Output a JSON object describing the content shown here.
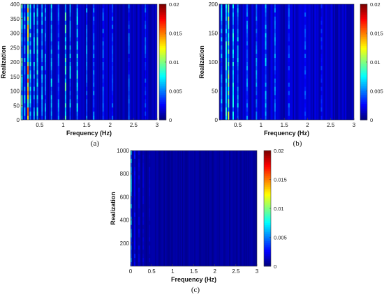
{
  "chart_data": [
    {
      "type": "heatmap",
      "panel_label": "(a)",
      "xlabel": "Frequency (Hz)",
      "ylabel": "Realization",
      "xlim": [
        0.1,
        3
      ],
      "ylim": [
        0,
        400
      ],
      "xticks": [
        0.5,
        1,
        1.5,
        2,
        2.5,
        3
      ],
      "xtick_labels": [
        "0.5",
        "1",
        "1.5",
        "2",
        "2.5",
        "3"
      ],
      "yticks": [
        0,
        50,
        100,
        150,
        200,
        250,
        300,
        350,
        400
      ],
      "ytick_labels": [
        "0",
        "50",
        "100",
        "150",
        "200",
        "250",
        "300",
        "350",
        "400"
      ],
      "colorbar": {
        "range": [
          0,
          0.02
        ],
        "ticks": [
          0,
          0.005,
          0.01,
          0.015,
          0.02
        ],
        "tick_labels": [
          "0",
          "0.005",
          "0.01",
          "0.015",
          "0.02"
        ],
        "colormap": "jet"
      },
      "peaks": [
        {
          "freq": 0.12,
          "value": 0.008
        },
        {
          "freq": 0.18,
          "value": 0.006
        },
        {
          "freq": 0.25,
          "value": 0.013
        },
        {
          "freq": 0.3,
          "value": 0.007
        },
        {
          "freq": 0.38,
          "value": 0.006
        },
        {
          "freq": 0.45,
          "value": 0.007
        },
        {
          "freq": 0.55,
          "value": 0.006
        },
        {
          "freq": 0.62,
          "value": 0.005
        },
        {
          "freq": 0.75,
          "value": 0.006
        },
        {
          "freq": 0.9,
          "value": 0.005
        },
        {
          "freq": 1.05,
          "value": 0.008
        },
        {
          "freq": 1.15,
          "value": 0.006
        },
        {
          "freq": 1.3,
          "value": 0.007
        },
        {
          "freq": 1.5,
          "value": 0.005
        },
        {
          "freq": 1.65,
          "value": 0.005
        },
        {
          "freq": 1.85,
          "value": 0.004
        },
        {
          "freq": 2.05,
          "value": 0.004
        },
        {
          "freq": 2.4,
          "value": 0.004
        },
        {
          "freq": 2.75,
          "value": 0.004
        }
      ],
      "background": 0.0008
    },
    {
      "type": "heatmap",
      "panel_label": "(b)",
      "xlabel": "Frequency (Hz)",
      "ylabel": "Realization",
      "xlim": [
        0.1,
        3
      ],
      "ylim": [
        0,
        200
      ],
      "xticks": [
        0.5,
        1,
        1.5,
        2,
        2.5,
        3
      ],
      "xtick_labels": [
        "0.5",
        "1",
        "1.5",
        "2",
        "2.5",
        "3"
      ],
      "yticks": [
        0,
        50,
        100,
        150,
        200
      ],
      "ytick_labels": [
        "0",
        "50",
        "100",
        "150",
        "200"
      ],
      "colorbar": {
        "range": [
          0,
          0.02
        ],
        "ticks": [
          0,
          0.005,
          0.01,
          0.015,
          0.02
        ],
        "tick_labels": [
          "0",
          "0.005",
          "0.01",
          "0.015",
          "0.02"
        ],
        "colormap": "jet"
      },
      "peaks": [
        {
          "freq": 0.15,
          "value": 0.006
        },
        {
          "freq": 0.25,
          "value": 0.008
        },
        {
          "freq": 0.3,
          "value": 0.01
        },
        {
          "freq": 0.4,
          "value": 0.007
        },
        {
          "freq": 0.5,
          "value": 0.006
        },
        {
          "freq": 0.7,
          "value": 0.005
        },
        {
          "freq": 0.9,
          "value": 0.005
        },
        {
          "freq": 1.1,
          "value": 0.006
        },
        {
          "freq": 1.3,
          "value": 0.005
        },
        {
          "freq": 1.6,
          "value": 0.004
        },
        {
          "freq": 1.95,
          "value": 0.004
        },
        {
          "freq": 2.3,
          "value": 0.003
        }
      ],
      "background": 0.0009
    },
    {
      "type": "heatmap",
      "panel_label": "(c)",
      "xlabel": "Frequency (Hz)",
      "ylabel": "Realization",
      "xlim": [
        0,
        3
      ],
      "ylim": [
        0,
        1000
      ],
      "xticks": [
        0,
        0.5,
        1,
        1.5,
        2,
        2.5,
        3
      ],
      "xtick_labels": [
        "0",
        "0.5",
        "1",
        "1.5",
        "2",
        "2.5",
        "3"
      ],
      "yticks": [
        200,
        400,
        600,
        800,
        1000
      ],
      "ytick_labels": [
        "200",
        "400",
        "600",
        "800",
        "1000"
      ],
      "colorbar": {
        "range": [
          0,
          0.02
        ],
        "ticks": [
          0,
          0.005,
          0.01,
          0.015,
          0.02
        ],
        "tick_labels": [
          "0",
          "0.005",
          "0.01",
          "0.015",
          "0.02"
        ],
        "colormap": "jet"
      },
      "peaks": [
        {
          "freq": 0.01,
          "value": 0.006
        },
        {
          "freq": 0.1,
          "value": 0.0025
        },
        {
          "freq": 0.2,
          "value": 0.0018
        },
        {
          "freq": 0.3,
          "value": 0.0015
        },
        {
          "freq": 0.45,
          "value": 0.0013
        }
      ],
      "background": 0.0004
    }
  ]
}
